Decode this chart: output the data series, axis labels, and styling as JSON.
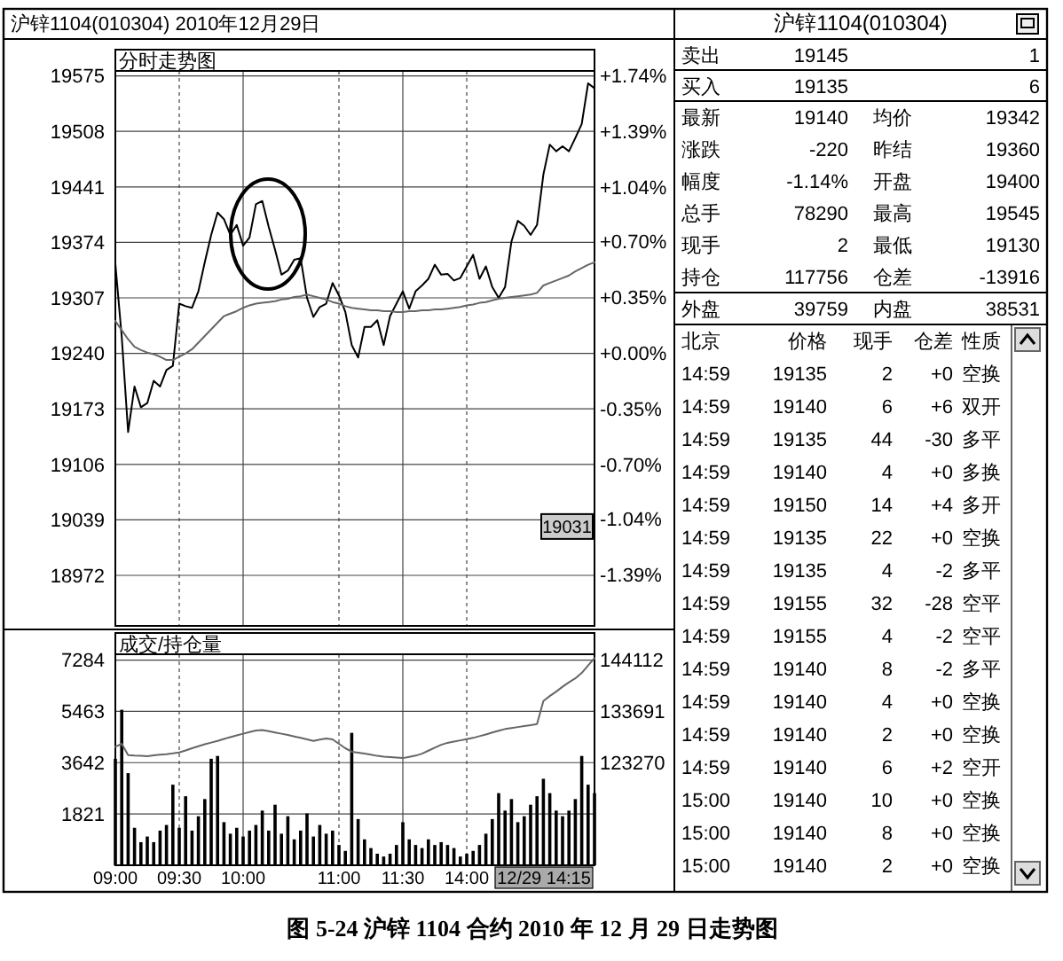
{
  "chart_data": [
    {
      "type": "line",
      "title": "沪锌1104(010304) 2010年12月29日",
      "subtitle": "分时走势图",
      "categories": [
        null,
        null,
        null,
        null,
        null,
        null,
        null,
        null,
        null,
        null,
        null,
        null,
        null,
        null,
        null,
        null,
        null,
        null,
        null,
        null,
        null,
        null,
        null,
        null,
        null,
        null,
        null,
        null,
        null,
        null,
        null,
        null,
        null,
        null,
        null,
        null,
        null,
        null,
        null,
        null,
        null,
        null,
        null,
        null,
        null,
        null,
        null,
        null,
        null,
        null,
        null,
        null,
        null,
        null,
        null,
        null,
        null,
        null,
        null,
        null,
        null,
        null,
        null,
        null,
        null,
        null,
        null,
        null,
        null,
        null,
        null,
        null,
        null,
        null,
        null,
        null
      ],
      "ylim": [
        18911,
        19581
      ],
      "yticks": [
        18972,
        19039,
        19106,
        19173,
        19240,
        19307,
        19374,
        19441,
        19508,
        19575
      ],
      "y2lim": [
        -1.71,
        1.772
      ],
      "y2ticks": [
        {
          "value": -1.39,
          "label": "-1.39%"
        },
        {
          "value": -1.04,
          "label": "-1.04%"
        },
        {
          "value": -0.7,
          "label": "-0.70%"
        },
        {
          "value": -0.35,
          "label": "-0.35%"
        },
        {
          "value": 0,
          "label": "+0.00%"
        },
        {
          "value": 0.35,
          "label": "+0.35%"
        },
        {
          "value": 0.7,
          "label": "+0.70%"
        },
        {
          "value": 1.04,
          "label": "+1.04%"
        },
        {
          "value": 1.39,
          "label": "+1.39%"
        },
        {
          "value": 1.74,
          "label": "+1.74%"
        }
      ],
      "grid": true,
      "series": [
        {
          "color": "#000000",
          "values": [
            19348,
            19260,
            19145,
            19200,
            19175,
            19180,
            19207,
            19200,
            19220,
            19225,
            19300,
            19297,
            19295,
            19315,
            19350,
            19383,
            19410,
            19402,
            19383,
            19395,
            19370,
            19380,
            19420,
            19424,
            19393,
            19365,
            19335,
            19340,
            19353,
            19355,
            19307,
            19284,
            19296,
            19300,
            19325,
            19310,
            19290,
            19250,
            19235,
            19272,
            19272,
            19280,
            19250,
            19285,
            19300,
            19315,
            19294,
            19315,
            19322,
            19330,
            19347,
            19335,
            19336,
            19328,
            19331,
            19345,
            19359,
            19330,
            19345,
            19320,
            19307,
            19320,
            19375,
            19400,
            19394,
            19383,
            19395,
            19456,
            19492,
            19484,
            19490,
            19484,
            19500,
            19517,
            19566,
            19560
          ]
        },
        {
          "color": "#666666",
          "values": [
            19279,
            19268,
            19257,
            19248,
            19244,
            19241,
            19239,
            19236,
            19232,
            19232,
            19236,
            19240,
            19245,
            19253,
            19261,
            19269,
            19277,
            19285,
            19288,
            19291,
            19295,
            19298,
            19300,
            19301,
            19302,
            19303,
            19305,
            19306,
            19308,
            19309,
            19311,
            19309,
            19307,
            19305,
            19302,
            19300,
            19297,
            19295,
            19294,
            19293,
            19292,
            19292,
            19291,
            19291,
            19290,
            19290,
            19291,
            19291,
            19292,
            19292,
            19293,
            19293,
            19294,
            19295,
            19296,
            19298,
            19299,
            19301,
            19302,
            19304,
            19306,
            19307,
            19308,
            19309,
            19310,
            19311,
            19313,
            19322,
            19325,
            19328,
            19331,
            19334,
            19339,
            19343,
            19347,
            19350
          ]
        }
      ],
      "annotations": [
        {
          "text": "19031",
          "y": 19031
        }
      ]
    },
    {
      "type": "bar",
      "title": "成交/持仓量",
      "categories": [
        "09:00",
        null,
        null,
        null,
        null,
        null,
        null,
        null,
        null,
        null,
        "09:30",
        null,
        null,
        null,
        null,
        null,
        null,
        null,
        null,
        null,
        "10:00",
        null,
        null,
        null,
        null,
        null,
        null,
        null,
        null,
        null,
        null,
        null,
        null,
        null,
        null,
        "11:00",
        null,
        null,
        null,
        null,
        null,
        null,
        null,
        null,
        null,
        "11:30",
        null,
        null,
        null,
        null,
        null,
        null,
        null,
        null,
        null,
        "14:00",
        null,
        null,
        null,
        null,
        null,
        null,
        null,
        null,
        null,
        null,
        null,
        null,
        null,
        null,
        null,
        null,
        null,
        null,
        null,
        null
      ],
      "ylim": [
        0,
        7490
      ],
      "yticks": [
        1821,
        3642,
        5463,
        7284
      ],
      "y2lim": [
        102428,
        145291
      ],
      "y2ticks": [
        123270,
        133691,
        144112
      ],
      "grid": true,
      "series": [
        {
          "type": "bar",
          "color": "#000000",
          "values": [
            3780,
            5520,
            3270,
            1330,
            820,
            1020,
            820,
            1230,
            1430,
            2860,
            1330,
            2450,
            1230,
            1740,
            2350,
            3780,
            3880,
            1530,
            1120,
            1330,
            1020,
            1230,
            1430,
            1940,
            1230,
            2150,
            1120,
            1740,
            920,
            1230,
            1840,
            1020,
            1430,
            1120,
            1230,
            720,
            510,
            4700,
            1640,
            920,
            610,
            410,
            310,
            410,
            720,
            1530,
            920,
            720,
            610,
            920,
            720,
            820,
            720,
            610,
            310,
            410,
            510,
            720,
            1120,
            1640,
            2560,
            1940,
            2350,
            1530,
            1740,
            2150,
            2450,
            3070,
            2560,
            1940,
            1740,
            1940,
            2350,
            3880,
            2860,
            2560
          ]
        },
        {
          "type": "line",
          "axis": "y2",
          "color": "#666666",
          "values": [
            126500,
            127100,
            124800,
            124700,
            124650,
            124600,
            124750,
            124900,
            125000,
            125150,
            125350,
            125750,
            126200,
            126600,
            127000,
            127350,
            127700,
            128100,
            128450,
            128800,
            129150,
            129500,
            129800,
            129900,
            129650,
            129400,
            129150,
            128900,
            128600,
            128300,
            128000,
            127700,
            127950,
            128200,
            128000,
            127100,
            126200,
            125500,
            125300,
            125100,
            124900,
            124650,
            124500,
            124400,
            124300,
            124200,
            124450,
            124700,
            125100,
            125700,
            126300,
            126900,
            127300,
            127550,
            127800,
            128050,
            128300,
            128650,
            129000,
            129400,
            129750,
            130100,
            130300,
            130500,
            130700,
            130900,
            131100,
            135800,
            136800,
            137700,
            138700,
            139600,
            140400,
            141500,
            143000,
            144500
          ]
        }
      ],
      "annotations": [
        "12/29 14:15",
        "图 5-24 沪锌 1104 合约 2010 年 12 月 29 日走势图"
      ]
    },
    {
      "type": "other",
      "title": "沪锌1104(010304)",
      "annotations": [
        "卖出",
        "19145",
        "1",
        "买入",
        "19135",
        "6",
        "最新",
        "19140",
        "均价",
        "19342",
        "涨跌",
        "-220",
        "昨结",
        "19360",
        "幅度",
        "-1.14%",
        "开盘",
        "19400",
        "总手",
        "78290",
        "最高",
        "19545",
        "现手",
        "2",
        "最低",
        "19130",
        "持仓",
        "117756",
        "仓差",
        "-13916",
        "外盘",
        "39759",
        "内盘",
        "38531",
        "北京",
        "价格",
        "现手",
        "仓差",
        "性质",
        "14:59",
        "19135",
        "2",
        "+0",
        "空换",
        "14:59",
        "19140",
        "6",
        "+6",
        "双开",
        "14:59",
        "19135",
        "44",
        "-30",
        "多平",
        "14:59",
        "19140",
        "4",
        "+0",
        "多换",
        "14:59",
        "19150",
        "14",
        "+4",
        "多开",
        "14:59",
        "19135",
        "22",
        "+0",
        "空换",
        "14:59",
        "19135",
        "4",
        "-2",
        "多平",
        "14:59",
        "19155",
        "32",
        "-28",
        "空平",
        "14:59",
        "19155",
        "4",
        "-2",
        "空平",
        "14:59",
        "19140",
        "8",
        "-2",
        "多平",
        "14:59",
        "19140",
        "4",
        "+0",
        "空换",
        "14:59",
        "19140",
        "2",
        "+0",
        "空换",
        "14:59",
        "19140",
        "6",
        "+2",
        "空开",
        "15:00",
        "19140",
        "10",
        "+0",
        "空换",
        "15:00",
        "19140",
        "8",
        "+0",
        "空换",
        "15:00",
        "19140",
        "2",
        "+0",
        "空换"
      ]
    }
  ]
}
